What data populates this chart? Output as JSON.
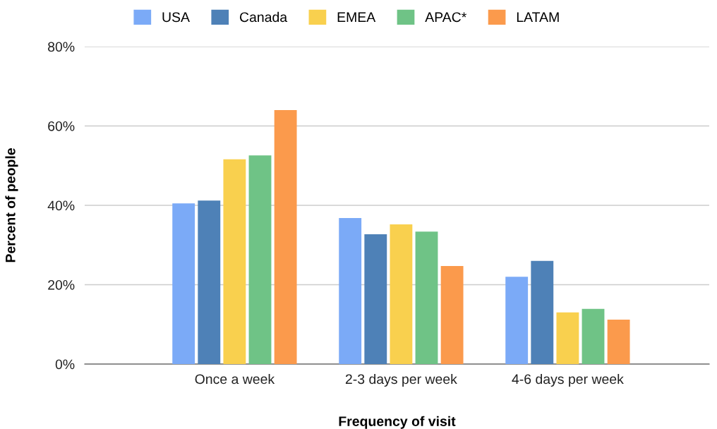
{
  "chart_data": {
    "type": "bar",
    "xlabel": "Frequency of visit",
    "ylabel": "Percent of people",
    "categories": [
      "Once a week",
      "2-3 days per week",
      "4-6 days per week"
    ],
    "series": [
      {
        "name": "USA",
        "color": "#7baaf7",
        "values": [
          40.5,
          36.8,
          22.0
        ]
      },
      {
        "name": "Canada",
        "color": "#4e81b7",
        "values": [
          41.2,
          32.7,
          26.0
        ]
      },
      {
        "name": "EMEA",
        "color": "#f9d04e",
        "values": [
          51.6,
          35.2,
          13.0
        ]
      },
      {
        "name": "APAC*",
        "color": "#6fc386",
        "values": [
          52.6,
          33.4,
          13.9
        ]
      },
      {
        "name": "LATAM",
        "color": "#fb9a4c",
        "values": [
          64.0,
          24.7,
          11.2
        ]
      }
    ],
    "ylim": [
      0,
      80
    ],
    "yticks": [
      {
        "value": 0,
        "label": "0%"
      },
      {
        "value": 20,
        "label": "20%"
      },
      {
        "value": 40,
        "label": "40%"
      },
      {
        "value": 60,
        "label": "60%"
      },
      {
        "value": 80,
        "label": "80%"
      }
    ],
    "grid": "y",
    "legend": "top"
  }
}
